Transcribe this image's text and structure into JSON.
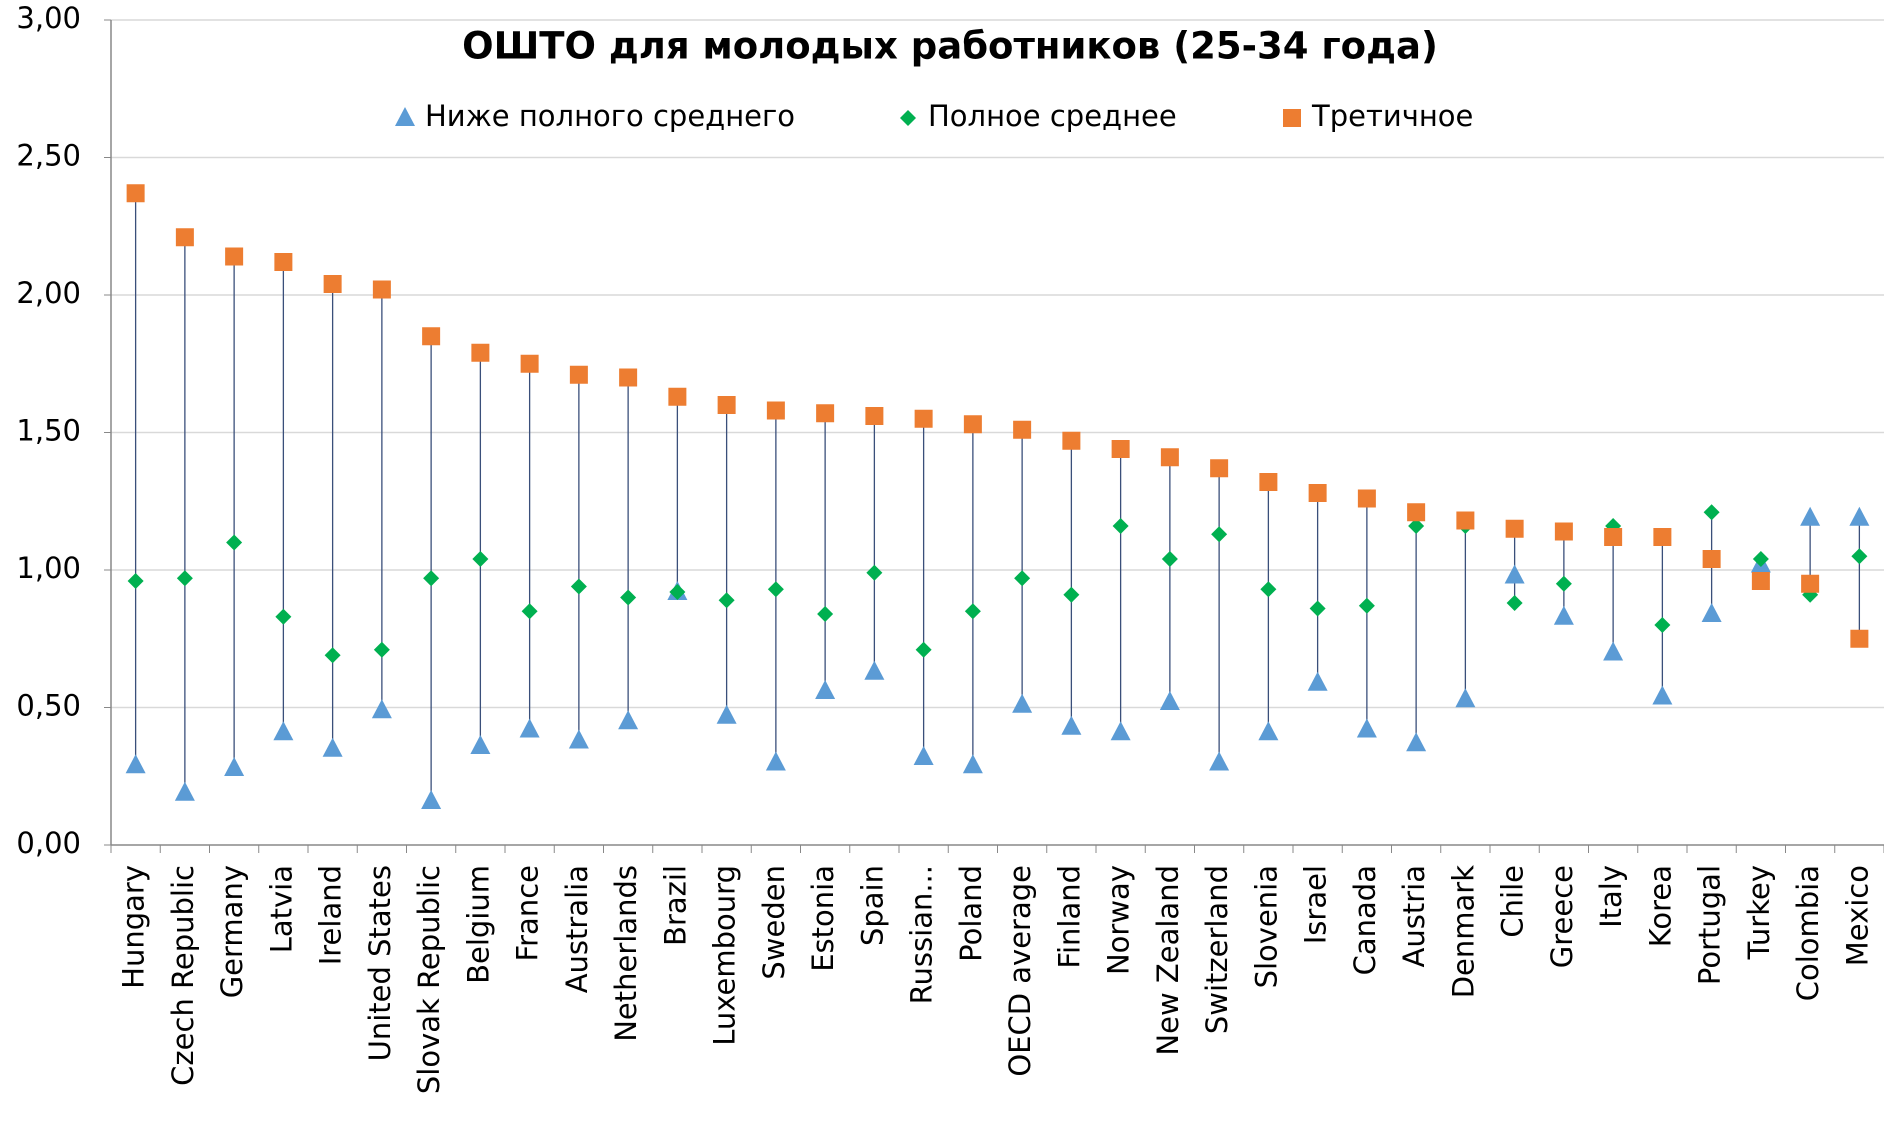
{
  "chart_data": {
    "type": "scatter",
    "title": "ОШТО для молодых работников (25-34 года)",
    "categories": [
      "Hungary",
      "Czech Republic",
      "Germany",
      "Latvia",
      "Ireland",
      "United States",
      "Slovak Republic",
      "Belgium",
      "France",
      "Australia",
      "Netherlands",
      "Brazil",
      "Luxembourg",
      "Sweden",
      "Estonia",
      "Spain",
      "Russian...",
      "Poland",
      "OECD average",
      "Finland",
      "Norway",
      "New Zealand",
      "Switzerland",
      "Slovenia",
      "Israel",
      "Canada",
      "Austria",
      "Denmark",
      "Chile",
      "Greece",
      "Italy",
      "Korea",
      "Portugal",
      "Turkey",
      "Colombia",
      "Mexico"
    ],
    "series": [
      {
        "name": "Ниже полного среднего",
        "color": "#5b9bd5",
        "marker": "triangle",
        "values": [
          0.29,
          0.19,
          0.28,
          0.41,
          0.35,
          0.49,
          0.16,
          0.36,
          0.42,
          0.38,
          0.45,
          0.92,
          0.47,
          0.3,
          0.56,
          0.63,
          0.32,
          0.29,
          0.51,
          0.43,
          0.41,
          0.52,
          0.3,
          0.41,
          0.59,
          0.42,
          0.37,
          0.53,
          0.98,
          0.83,
          0.7,
          0.54,
          0.84,
          1.02,
          1.19,
          1.19
        ]
      },
      {
        "name": "Полное среднее",
        "color": "#00b050",
        "marker": "diamond",
        "values": [
          0.96,
          0.97,
          1.1,
          0.83,
          0.69,
          0.71,
          0.97,
          1.04,
          0.85,
          0.94,
          0.9,
          0.92,
          0.89,
          0.93,
          0.84,
          0.99,
          0.71,
          0.85,
          0.97,
          0.91,
          1.16,
          1.04,
          1.13,
          0.93,
          0.86,
          0.87,
          1.16,
          1.16,
          0.88,
          0.95,
          1.16,
          0.8,
          1.21,
          1.04,
          0.91,
          1.05
        ]
      },
      {
        "name": "Третичное",
        "color": "#ed7d31",
        "marker": "square",
        "values": [
          2.37,
          2.21,
          2.14,
          2.12,
          2.04,
          2.02,
          1.85,
          1.79,
          1.75,
          1.71,
          1.7,
          1.63,
          1.6,
          1.58,
          1.57,
          1.56,
          1.55,
          1.53,
          1.51,
          1.47,
          1.44,
          1.41,
          1.37,
          1.32,
          1.28,
          1.26,
          1.21,
          1.18,
          1.15,
          1.14,
          1.12,
          1.12,
          1.04,
          0.96,
          0.95,
          0.75
        ]
      }
    ],
    "ylim": [
      0,
      3
    ],
    "yticks": [
      {
        "value": 0,
        "label": "0,00"
      },
      {
        "value": 0.5,
        "label": "0,50"
      },
      {
        "value": 1,
        "label": "1,00"
      },
      {
        "value": 1.5,
        "label": "1,50"
      },
      {
        "value": 2,
        "label": "2,00"
      },
      {
        "value": 2.5,
        "label": "2,50"
      },
      {
        "value": 3,
        "label": "3,00"
      }
    ],
    "grid": true,
    "legend": "top"
  }
}
